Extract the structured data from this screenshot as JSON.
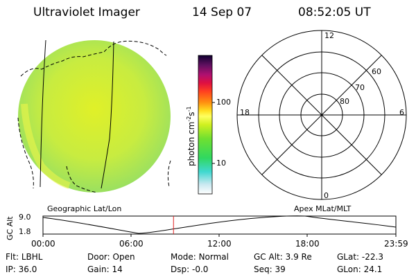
{
  "header": {
    "instrument": "Ultraviolet Imager",
    "date": "14 Sep 07",
    "time": "08:52:05 UT"
  },
  "colorbar": {
    "unit_label": "photon cm",
    "unit_sup1": "-2",
    "unit_mid": "s",
    "unit_sup2": "-1",
    "ticks": [
      "100",
      "10"
    ]
  },
  "polar": {
    "mlt_labels": {
      "top": "12",
      "left": "18",
      "right": "6",
      "bottom": "0"
    },
    "lat_labels": [
      "60",
      "70",
      "80"
    ]
  },
  "projections": {
    "left": "Geographic Lat/Lon",
    "right": "Apex MLat/MLT"
  },
  "altitude_plot": {
    "ylabel": "GC Alt",
    "yticks": [
      "9.0",
      "1.8"
    ],
    "xticks": [
      "00:00",
      "06:00",
      "12:00",
      "18:00",
      "23:59"
    ],
    "current_time_hours": 8.87,
    "marker_color": "#e02020"
  },
  "status": {
    "row1": [
      {
        "key": "Flt:",
        "value": "LBHL"
      },
      {
        "key": "Door:",
        "value": "Open"
      },
      {
        "key": "Mode:",
        "value": "Normal"
      },
      {
        "key": "GC Alt:",
        "value": "3.9 Re"
      },
      {
        "key": "GLat:",
        "value": "-22.3"
      }
    ],
    "row2": [
      {
        "key": "IP:",
        "value": "36.0"
      },
      {
        "key": "Gain:",
        "value": "14"
      },
      {
        "key": "Dsp:",
        "value": "-0.0"
      },
      {
        "key": "Seq:",
        "value": "39"
      },
      {
        "key": "GLon:",
        "value": "24.1"
      }
    ]
  }
}
